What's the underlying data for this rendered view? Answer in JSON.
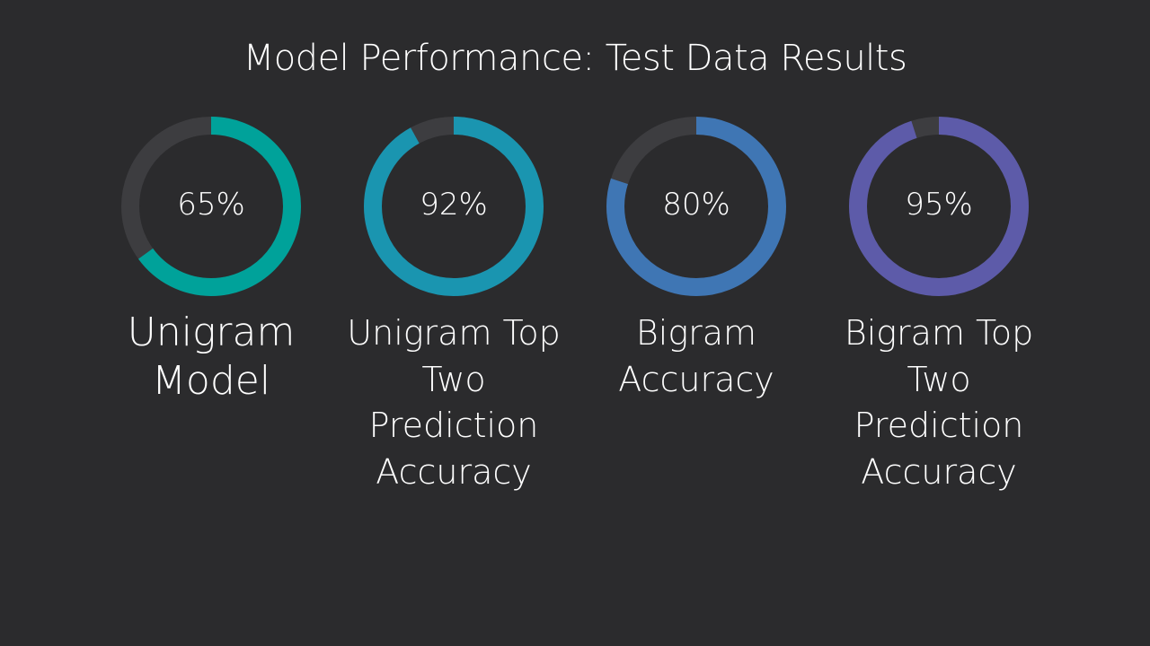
{
  "chart_data": {
    "type": "donut",
    "title": "Model Performance: Test Data Results",
    "track_color": "#3d3d40",
    "items": [
      {
        "label_lines": [
          "Unigram",
          "Model"
        ],
        "value": 65,
        "display": "65%",
        "color": "#00a29a"
      },
      {
        "label_lines": [
          "Unigram Top",
          "Two",
          "Prediction",
          "Accuracy"
        ],
        "value": 92,
        "display": "92%",
        "color": "#1a95b0"
      },
      {
        "label_lines": [
          "Bigram",
          "Accuracy"
        ],
        "value": 80,
        "display": "80%",
        "color": "#3f76b4"
      },
      {
        "label_lines": [
          "Bigram Top",
          "Two",
          "Prediction",
          "Accuracy"
        ],
        "value": 95,
        "display": "95%",
        "color": "#5d5ba9"
      }
    ]
  }
}
